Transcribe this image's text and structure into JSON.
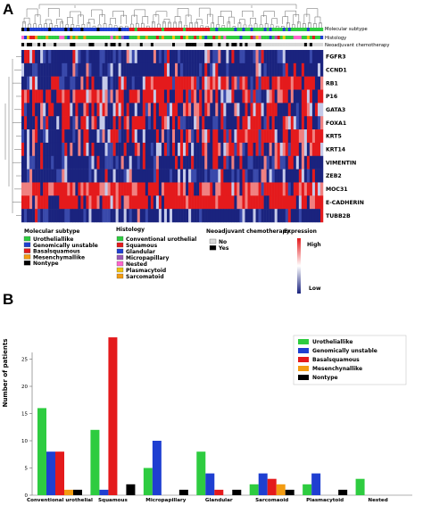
{
  "panel_a": {
    "letter": "A",
    "track_labels": [
      "Molecular subtype",
      "Histology",
      "Neoadjuvant chemotherapy"
    ],
    "genes": [
      "FGFR3",
      "CCND1",
      "RB1",
      "P16",
      "GATA3",
      "FOXA1",
      "KRT5",
      "KRT14",
      "VIMENTIN",
      "ZEB2",
      "MOC31",
      "E-CADHERIN",
      "TUBB2B"
    ],
    "legends": {
      "molecular_subtype": {
        "title": "Molecular subtype",
        "items": [
          {
            "label": "Urotheliallike",
            "color": "#2ecc40"
          },
          {
            "label": "Genomically unstable",
            "color": "#1f3fd1"
          },
          {
            "label": "Basalsquamous",
            "color": "#e41a1c"
          },
          {
            "label": "Mesenchymallike",
            "color": "#f39c12"
          },
          {
            "label": "Nontype",
            "color": "#000000"
          }
        ]
      },
      "histology": {
        "title": "Histology",
        "items": [
          {
            "label": "Conventional urothelial",
            "color": "#2ecc40"
          },
          {
            "label": "Squamous",
            "color": "#e41a1c"
          },
          {
            "label": "Glandular",
            "color": "#1f3fd1"
          },
          {
            "label": "Micropapillary",
            "color": "#9b59b6"
          },
          {
            "label": "Nested",
            "color": "#ff66cc"
          },
          {
            "label": "Plasmacytoid",
            "color": "#f1c40f"
          },
          {
            "label": "Sarcomatoid",
            "color": "#f39c12"
          }
        ]
      },
      "chemo": {
        "title": "Neoadjuvant chemotherapy",
        "items": [
          {
            "label": "No",
            "color": "#d9d9d9"
          },
          {
            "label": "Yes",
            "color": "#000000"
          }
        ]
      },
      "expression": {
        "title": "Expression",
        "high": "High",
        "low": "Low",
        "colors": [
          "#e41a1c",
          "#ffffff",
          "#1a237e"
        ]
      }
    }
  },
  "chart_data": {
    "panel_letter": "B",
    "type": "bar",
    "categories": [
      "Conventional urothelial",
      "Squamous",
      "Micropapillary",
      "Glandular",
      "Sarcomaoid",
      "Plasmacytoid",
      "Nested"
    ],
    "ylabel": "Number of patients",
    "xlabel": "",
    "ylim": [
      0,
      30
    ],
    "yticks": [
      0,
      5,
      10,
      15,
      20,
      25
    ],
    "legend_position": "top-right",
    "series": [
      {
        "name": "Urotheliallike",
        "color": "#2ecc40",
        "values": [
          16,
          12,
          5,
          8,
          2,
          2,
          3
        ]
      },
      {
        "name": "Genomically unstable",
        "color": "#1f3fd1",
        "values": [
          8,
          1,
          10,
          4,
          4,
          4,
          0
        ]
      },
      {
        "name": "Basalsquamous",
        "color": "#e41a1c",
        "values": [
          8,
          29,
          0,
          1,
          3,
          0,
          0
        ]
      },
      {
        "name": "Mesenchynallike",
        "color": "#f39c12",
        "values": [
          1,
          0,
          0,
          0,
          2,
          0,
          0
        ]
      },
      {
        "name": "Nontype",
        "color": "#000000",
        "values": [
          1,
          2,
          1,
          1,
          1,
          1,
          0
        ]
      }
    ]
  }
}
